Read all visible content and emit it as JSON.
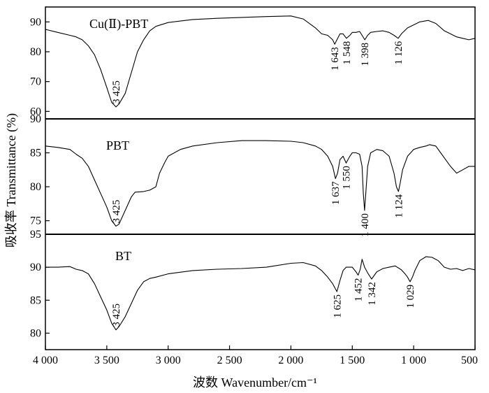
{
  "chart_data": {
    "type": "line",
    "title": "",
    "xlabel": "波数 Wavenumber/cm⁻¹",
    "ylabel": "吸收率 Transmittance (%)",
    "xlim": [
      4000,
      500
    ],
    "x_ticks": [
      4000,
      3500,
      3000,
      2500,
      2000,
      1500,
      1000,
      500
    ],
    "x_tick_labels": [
      "4 000",
      "3 500",
      "3 000",
      "2 500",
      "2 000",
      "1 500",
      "1 000",
      "500"
    ],
    "panels": [
      {
        "name": "Cu(Ⅱ)-PBT",
        "label": "Cu(Ⅱ)-PBT",
        "ylim": [
          57.5,
          95
        ],
        "y_ticks": [
          60,
          70,
          80,
          90
        ],
        "y_tick_labels": [
          "60",
          "70",
          "80",
          "90"
        ],
        "points": [
          [
            4000,
            87.5
          ],
          [
            3900,
            86.5
          ],
          [
            3800,
            85.5
          ],
          [
            3750,
            85
          ],
          [
            3700,
            84
          ],
          [
            3650,
            82
          ],
          [
            3600,
            79
          ],
          [
            3550,
            74
          ],
          [
            3500,
            68
          ],
          [
            3460,
            63
          ],
          [
            3425,
            61.5
          ],
          [
            3400,
            62.5
          ],
          [
            3350,
            66
          ],
          [
            3300,
            73
          ],
          [
            3250,
            80
          ],
          [
            3200,
            84
          ],
          [
            3150,
            87
          ],
          [
            3100,
            88.5
          ],
          [
            3000,
            89.8
          ],
          [
            2800,
            90.8
          ],
          [
            2600,
            91.2
          ],
          [
            2400,
            91.5
          ],
          [
            2200,
            91.8
          ],
          [
            2000,
            92
          ],
          [
            1900,
            91
          ],
          [
            1800,
            88
          ],
          [
            1750,
            86
          ],
          [
            1700,
            85.5
          ],
          [
            1660,
            84
          ],
          [
            1643,
            82.5
          ],
          [
            1625,
            84
          ],
          [
            1600,
            86
          ],
          [
            1575,
            86
          ],
          [
            1548,
            84.5
          ],
          [
            1520,
            85.5
          ],
          [
            1500,
            86.5
          ],
          [
            1470,
            86.5
          ],
          [
            1440,
            86.8
          ],
          [
            1420,
            85.5
          ],
          [
            1398,
            84
          ],
          [
            1375,
            85.5
          ],
          [
            1350,
            86.5
          ],
          [
            1300,
            86.8
          ],
          [
            1250,
            87
          ],
          [
            1200,
            86.5
          ],
          [
            1160,
            85.5
          ],
          [
            1126,
            84.5
          ],
          [
            1100,
            86
          ],
          [
            1050,
            88
          ],
          [
            1000,
            89
          ],
          [
            950,
            90
          ],
          [
            880,
            90.5
          ],
          [
            820,
            89.5
          ],
          [
            750,
            87
          ],
          [
            700,
            86
          ],
          [
            650,
            85
          ],
          [
            600,
            84.5
          ],
          [
            550,
            84
          ],
          [
            500,
            84.5
          ]
        ],
        "peaks": [
          {
            "x": 3425,
            "label": "3 425"
          },
          {
            "x": 1643,
            "label": "1 643"
          },
          {
            "x": 1548,
            "label": "1 548"
          },
          {
            "x": 1398,
            "label": "1 398"
          },
          {
            "x": 1126,
            "label": "1 126"
          }
        ]
      },
      {
        "name": "PBT",
        "label": "PBT",
        "ylim": [
          73,
          90
        ],
        "y_ticks": [
          75,
          80,
          85,
          90
        ],
        "y_tick_labels": [
          "75",
          "80",
          "85",
          "90"
        ],
        "points": [
          [
            4000,
            86
          ],
          [
            3900,
            85.8
          ],
          [
            3800,
            85.5
          ],
          [
            3750,
            84.8
          ],
          [
            3700,
            84.2
          ],
          [
            3650,
            83
          ],
          [
            3600,
            81
          ],
          [
            3550,
            79
          ],
          [
            3500,
            77
          ],
          [
            3460,
            75
          ],
          [
            3425,
            74.2
          ],
          [
            3400,
            74.5
          ],
          [
            3350,
            76.5
          ],
          [
            3300,
            78.5
          ],
          [
            3270,
            79.2
          ],
          [
            3200,
            79.3
          ],
          [
            3150,
            79.5
          ],
          [
            3100,
            80
          ],
          [
            3070,
            82
          ],
          [
            3030,
            83.5
          ],
          [
            3000,
            84.5
          ],
          [
            2900,
            85.5
          ],
          [
            2800,
            86
          ],
          [
            2600,
            86.5
          ],
          [
            2400,
            86.8
          ],
          [
            2200,
            86.8
          ],
          [
            2000,
            86.7
          ],
          [
            1900,
            86.5
          ],
          [
            1800,
            86
          ],
          [
            1750,
            85.5
          ],
          [
            1700,
            84.5
          ],
          [
            1660,
            83
          ],
          [
            1637,
            81.2
          ],
          [
            1620,
            82
          ],
          [
            1600,
            84
          ],
          [
            1575,
            84.5
          ],
          [
            1550,
            83.5
          ],
          [
            1520,
            84.5
          ],
          [
            1500,
            85
          ],
          [
            1470,
            85
          ],
          [
            1440,
            84.8
          ],
          [
            1420,
            83
          ],
          [
            1410,
            79
          ],
          [
            1400,
            76.5
          ],
          [
            1390,
            79
          ],
          [
            1375,
            83
          ],
          [
            1350,
            85
          ],
          [
            1300,
            85.5
          ],
          [
            1250,
            85.3
          ],
          [
            1200,
            84.5
          ],
          [
            1160,
            82
          ],
          [
            1140,
            80
          ],
          [
            1124,
            79.3
          ],
          [
            1110,
            80.5
          ],
          [
            1090,
            82.5
          ],
          [
            1050,
            84.5
          ],
          [
            1000,
            85.5
          ],
          [
            950,
            85.8
          ],
          [
            900,
            86
          ],
          [
            870,
            86.2
          ],
          [
            820,
            86
          ],
          [
            780,
            85
          ],
          [
            740,
            84
          ],
          [
            700,
            83
          ],
          [
            650,
            82
          ],
          [
            600,
            82.5
          ],
          [
            550,
            83
          ],
          [
            500,
            83
          ]
        ],
        "peaks": [
          {
            "x": 3425,
            "label": "3 425"
          },
          {
            "x": 1637,
            "label": "1 637"
          },
          {
            "x": 1550,
            "label": "1 550"
          },
          {
            "x": 1400,
            "label": "1 400"
          },
          {
            "x": 1124,
            "label": "1 124"
          }
        ]
      },
      {
        "name": "BT",
        "label": "BT",
        "ylim": [
          77.5,
          95
        ],
        "y_ticks": [
          80,
          85,
          90,
          95
        ],
        "y_tick_labels": [
          "80",
          "85",
          "90",
          "95"
        ],
        "points": [
          [
            4000,
            90
          ],
          [
            3900,
            90
          ],
          [
            3800,
            90.1
          ],
          [
            3750,
            89.7
          ],
          [
            3700,
            89.5
          ],
          [
            3650,
            89
          ],
          [
            3600,
            87.5
          ],
          [
            3550,
            85.5
          ],
          [
            3500,
            83.5
          ],
          [
            3460,
            81.5
          ],
          [
            3425,
            80.5
          ],
          [
            3400,
            81
          ],
          [
            3350,
            82.5
          ],
          [
            3300,
            84.5
          ],
          [
            3250,
            86.5
          ],
          [
            3200,
            87.8
          ],
          [
            3150,
            88.3
          ],
          [
            3100,
            88.5
          ],
          [
            3000,
            89
          ],
          [
            2800,
            89.5
          ],
          [
            2600,
            89.7
          ],
          [
            2400,
            89.8
          ],
          [
            2200,
            90
          ],
          [
            2000,
            90.6
          ],
          [
            1900,
            90.7
          ],
          [
            1800,
            90.2
          ],
          [
            1750,
            89.5
          ],
          [
            1700,
            88.5
          ],
          [
            1660,
            87.5
          ],
          [
            1625,
            86.3
          ],
          [
            1600,
            88
          ],
          [
            1575,
            89.5
          ],
          [
            1550,
            90
          ],
          [
            1500,
            90
          ],
          [
            1470,
            89.3
          ],
          [
            1452,
            88.8
          ],
          [
            1435,
            89.7
          ],
          [
            1420,
            91.2
          ],
          [
            1400,
            90
          ],
          [
            1370,
            89
          ],
          [
            1342,
            88.2
          ],
          [
            1320,
            88.8
          ],
          [
            1300,
            89.3
          ],
          [
            1250,
            89.8
          ],
          [
            1200,
            90
          ],
          [
            1150,
            90.2
          ],
          [
            1100,
            89.6
          ],
          [
            1070,
            89
          ],
          [
            1050,
            88.5
          ],
          [
            1029,
            87.8
          ],
          [
            1010,
            88.5
          ],
          [
            990,
            89.5
          ],
          [
            950,
            91
          ],
          [
            900,
            91.6
          ],
          [
            850,
            91.5
          ],
          [
            800,
            91
          ],
          [
            750,
            90
          ],
          [
            700,
            89.7
          ],
          [
            650,
            89.8
          ],
          [
            600,
            89.5
          ],
          [
            550,
            89.8
          ],
          [
            500,
            89.6
          ]
        ],
        "peaks": [
          {
            "x": 3425,
            "label": "3 425"
          },
          {
            "x": 1625,
            "label": "1 625"
          },
          {
            "x": 1452,
            "label": "1 452"
          },
          {
            "x": 1342,
            "label": "1 342"
          },
          {
            "x": 1029,
            "label": "1 029"
          }
        ]
      }
    ]
  }
}
